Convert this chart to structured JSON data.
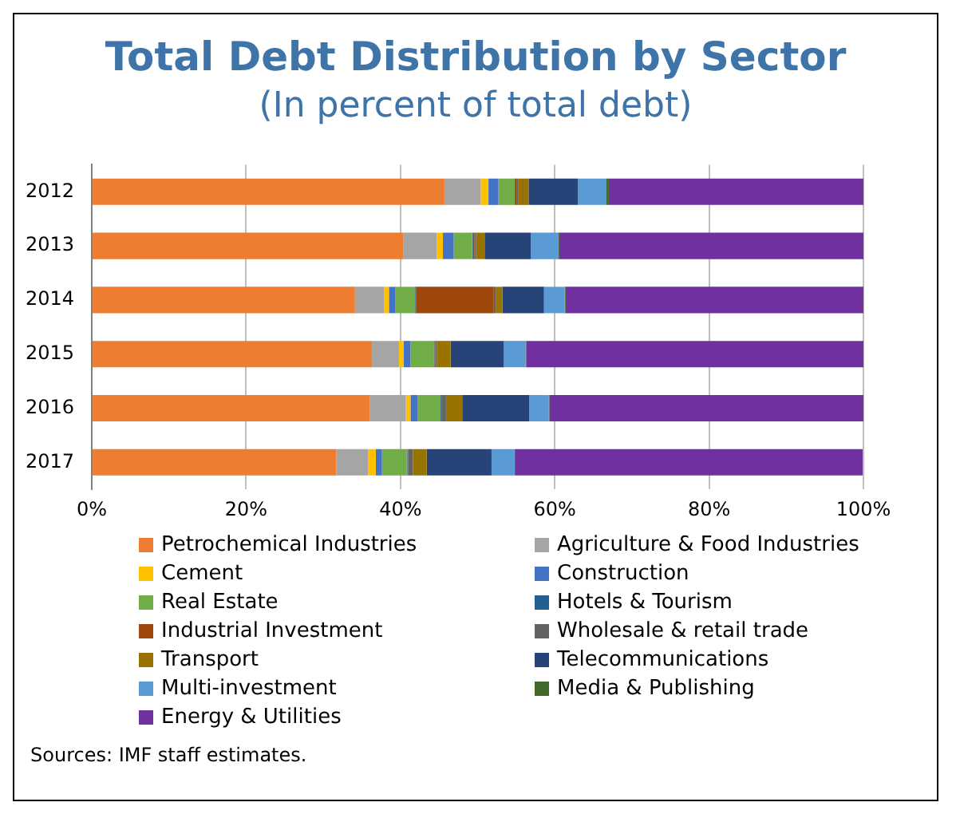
{
  "chart_data": {
    "type": "bar",
    "orientation": "horizontal",
    "stacked": true,
    "title": "Total Debt Distribution by Sector",
    "subtitle": "(In percent of total debt)",
    "categories": [
      "2012",
      "2013",
      "2014",
      "2015",
      "2016",
      "2017"
    ],
    "series": [
      {
        "name": "Petrochemical Industries",
        "color": "#ed7d31",
        "values": [
          45.7,
          40.4,
          34.1,
          36.3,
          36.0,
          31.7
        ]
      },
      {
        "name": "Agriculture & Food Industries",
        "color": "#a5a5a5",
        "values": [
          4.7,
          4.3,
          3.8,
          3.5,
          4.7,
          4.1
        ]
      },
      {
        "name": "Cement",
        "color": "#ffc000",
        "values": [
          1.0,
          0.8,
          0.6,
          0.6,
          0.6,
          1.0
        ]
      },
      {
        "name": "Construction",
        "color": "#4472c4",
        "values": [
          1.3,
          1.4,
          0.8,
          0.9,
          0.9,
          0.8
        ]
      },
      {
        "name": "Real Estate",
        "color": "#70ad47",
        "values": [
          2.1,
          2.4,
          2.6,
          3.0,
          3.0,
          3.2
        ]
      },
      {
        "name": "Hotels & Tourism",
        "color": "#255e91",
        "values": [
          0.1,
          0.1,
          0.1,
          0.1,
          0.1,
          0.1
        ]
      },
      {
        "name": "Industrial Investment",
        "color": "#9e480e",
        "values": [
          0.2,
          0.2,
          10.1,
          0.1,
          0.1,
          0.1
        ]
      },
      {
        "name": "Wholesale & retail trade",
        "color": "#636363",
        "values": [
          0.2,
          0.2,
          0.3,
          0.2,
          0.5,
          0.6
        ]
      },
      {
        "name": "Transport",
        "color": "#997300",
        "values": [
          1.3,
          1.1,
          0.8,
          1.8,
          2.1,
          1.8
        ]
      },
      {
        "name": "Telecommunications",
        "color": "#264478",
        "values": [
          6.4,
          6.0,
          5.4,
          6.9,
          8.7,
          8.4
        ]
      },
      {
        "name": "Multi-investment",
        "color": "#5b9bd5",
        "values": [
          3.7,
          3.6,
          2.7,
          2.8,
          2.5,
          3.0
        ]
      },
      {
        "name": "Media & Publishing",
        "color": "#43682b",
        "values": [
          0.3,
          0.1,
          0.1,
          0.1,
          0.1,
          0.1
        ]
      },
      {
        "name": "Energy & Utilities",
        "color": "#7030a0",
        "values": [
          33.0,
          39.4,
          38.6,
          43.7,
          40.7,
          45.0
        ]
      }
    ],
    "xlim": [
      0,
      100
    ],
    "xticks": [
      {
        "value": 0,
        "label": "0%"
      },
      {
        "value": 20,
        "label": "20%"
      },
      {
        "value": 40,
        "label": "40%"
      },
      {
        "value": 60,
        "label": "60%"
      },
      {
        "value": 80,
        "label": "80%"
      },
      {
        "value": 100,
        "label": "100%"
      }
    ],
    "grid": "x",
    "legend": "bottom",
    "annotations": [
      "Sources: IMF staff estimates."
    ]
  }
}
